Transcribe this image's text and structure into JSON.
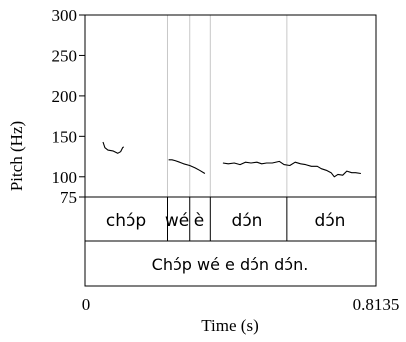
{
  "chart_data": {
    "type": "line",
    "title": "",
    "xlabel": "Time (s)",
    "ylabel": "Pitch (Hz)",
    "xlim": [
      0,
      0.8135
    ],
    "ylim": [
      75,
      300
    ],
    "x_tick_labels": [
      "0",
      "0.8135"
    ],
    "y_ticks": [
      75,
      100,
      150,
      200,
      250,
      300
    ],
    "y_tick_labels": [
      "75",
      "100",
      "150",
      "200",
      "250",
      "300"
    ],
    "grid": false,
    "word_boundaries": [
      0.2306,
      0.2928,
      0.3503,
      0.5643
    ],
    "series": [
      {
        "segments": [
          [
            [
              0.0502,
              143
            ],
            [
              0.0555,
              136
            ],
            [
              0.064,
              133
            ],
            [
              0.078,
              132
            ],
            [
              0.0915,
              129
            ],
            [
              0.0995,
              131
            ],
            [
              0.105,
              136
            ],
            [
              0.1082,
              137
            ]
          ],
          [
            [
              0.2337,
              121
            ],
            [
              0.2433,
              121
            ],
            [
              0.2518,
              120
            ],
            [
              0.2645,
              118
            ],
            [
              0.2755,
              116
            ],
            [
              0.2928,
              114
            ],
            [
              0.3079,
              111
            ],
            [
              0.3205,
              108
            ],
            [
              0.3353,
              104
            ]
          ],
          [
            [
              0.3855,
              117
            ],
            [
              0.4006,
              116
            ],
            [
              0.417,
              117
            ],
            [
              0.4335,
              115
            ],
            [
              0.4485,
              118
            ],
            [
              0.464,
              117
            ],
            [
              0.4805,
              118
            ],
            [
              0.494,
              116
            ],
            [
              0.5077,
              117
            ],
            [
              0.5235,
              117
            ],
            [
              0.5435,
              119
            ],
            [
              0.5562,
              115
            ],
            [
              0.5725,
              114
            ],
            [
              0.5877,
              118
            ],
            [
              0.6028,
              116
            ],
            [
              0.6165,
              115
            ],
            [
              0.633,
              113
            ],
            [
              0.6495,
              113
            ],
            [
              0.6605,
              110
            ],
            [
              0.6745,
              108
            ],
            [
              0.688,
              105
            ],
            [
              0.697,
              100
            ],
            [
              0.707,
              103
            ],
            [
              0.7205,
              102
            ],
            [
              0.7318,
              107
            ],
            [
              0.7455,
              105
            ],
            [
              0.7565,
              105
            ],
            [
              0.7714,
              104
            ]
          ]
        ]
      }
    ]
  },
  "tiers": {
    "words": [
      "chɔ́p",
      "wé",
      "è",
      "dɔ́n",
      "dɔ́n"
    ],
    "sentence": "Chɔ́p wé e dɔ́n dɔ́n."
  },
  "colors": {
    "pitch": "#000000",
    "axis": "#000000",
    "boundary": "#c8c8c8"
  }
}
